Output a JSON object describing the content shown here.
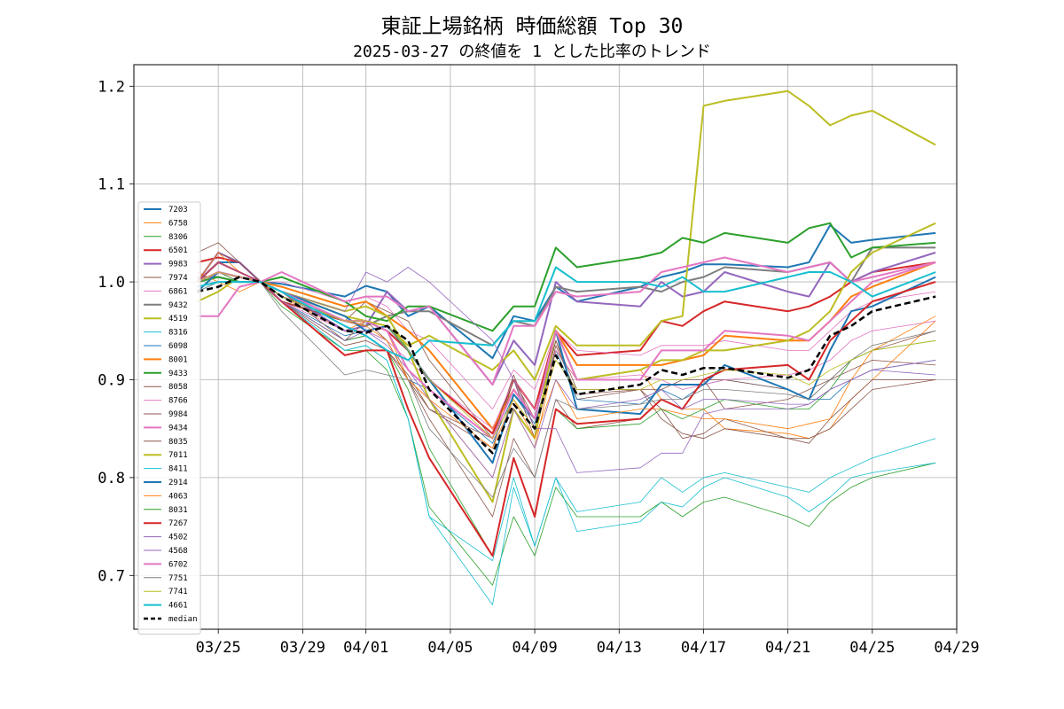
{
  "title": "東証上場銘柄 時価総額 Top 30",
  "subtitle": "2025-03-27 の終値を 1 とした比率のトレンド",
  "chart_data": {
    "type": "line",
    "grid": true,
    "legend_position": "left",
    "ylim": [
      0.645,
      1.222
    ],
    "xlim": [
      "2025-03-21",
      "2025-04-29"
    ],
    "xticks": [
      {
        "date": "2025-03-25",
        "label": "03/25"
      },
      {
        "date": "2025-03-29",
        "label": "03/29"
      },
      {
        "date": "2025-04-01",
        "label": "04/01"
      },
      {
        "date": "2025-04-05",
        "label": "04/05"
      },
      {
        "date": "2025-04-09",
        "label": "04/09"
      },
      {
        "date": "2025-04-13",
        "label": "04/13"
      },
      {
        "date": "2025-04-17",
        "label": "04/17"
      },
      {
        "date": "2025-04-21",
        "label": "04/21"
      },
      {
        "date": "2025-04-25",
        "label": "04/25"
      },
      {
        "date": "2025-04-29",
        "label": "04/29"
      }
    ],
    "yticks": [
      {
        "value": 0.7,
        "label": "0.7"
      },
      {
        "value": 0.8,
        "label": "0.8"
      },
      {
        "value": 0.9,
        "label": "0.9"
      },
      {
        "value": 1.0,
        "label": "1.0"
      },
      {
        "value": 1.1,
        "label": "1.1"
      },
      {
        "value": 1.2,
        "label": "1.2"
      }
    ],
    "x": [
      "2025-03-24",
      "2025-03-25",
      "2025-03-26",
      "2025-03-27",
      "2025-03-28",
      "2025-03-31",
      "2025-04-01",
      "2025-04-02",
      "2025-04-03",
      "2025-04-04",
      "2025-04-07",
      "2025-04-08",
      "2025-04-09",
      "2025-04-10",
      "2025-04-11",
      "2025-04-14",
      "2025-04-15",
      "2025-04-16",
      "2025-04-17",
      "2025-04-18",
      "2025-04-21",
      "2025-04-22",
      "2025-04-23",
      "2025-04-24",
      "2025-04-25",
      "2025-04-28"
    ],
    "series": [
      {
        "name": "7203",
        "color": "#1f77b4",
        "width": 2,
        "values": [
          1.0,
          1.02,
          1.02,
          1.0,
          0.998,
          0.985,
          0.996,
          0.99,
          0.965,
          0.975,
          0.922,
          0.965,
          0.96,
          0.995,
          0.98,
          0.995,
          1.005,
          1.01,
          1.018,
          1.018,
          1.015,
          1.02,
          1.058,
          1.04,
          1.043,
          1.05
        ]
      },
      {
        "name": "6758",
        "color": "#ff7f0e",
        "width": 0.8,
        "values": [
          1.01,
          1.0,
          0.99,
          1.0,
          0.985,
          0.95,
          0.96,
          0.95,
          0.9,
          0.88,
          0.8,
          0.87,
          0.83,
          0.93,
          0.9,
          0.91,
          0.88,
          0.87,
          0.87,
          0.85,
          0.845,
          0.84,
          0.85,
          0.88,
          0.9,
          0.96
        ]
      },
      {
        "name": "8306",
        "color": "#2ca02c",
        "width": 0.8,
        "values": [
          0.99,
          1.01,
          1.005,
          1.0,
          0.975,
          0.93,
          0.93,
          0.91,
          0.86,
          0.77,
          0.69,
          0.76,
          0.72,
          0.79,
          0.76,
          0.76,
          0.775,
          0.76,
          0.775,
          0.78,
          0.76,
          0.75,
          0.775,
          0.79,
          0.8,
          0.815
        ]
      },
      {
        "name": "6501",
        "color": "#d62728",
        "width": 2,
        "values": [
          1.02,
          1.025,
          1.02,
          1.0,
          0.98,
          0.96,
          0.96,
          0.95,
          0.93,
          0.9,
          0.845,
          0.9,
          0.87,
          0.95,
          0.925,
          0.93,
          0.96,
          0.955,
          0.97,
          0.98,
          0.97,
          0.975,
          0.985,
          1.0,
          1.01,
          1.02
        ]
      },
      {
        "name": "9983",
        "color": "#9467bd",
        "width": 2,
        "values": [
          1.0,
          1.03,
          1.02,
          1.0,
          0.99,
          0.95,
          0.955,
          0.99,
          0.97,
          0.975,
          0.895,
          0.94,
          0.915,
          1.0,
          0.98,
          0.975,
          1.0,
          0.985,
          0.99,
          1.01,
          0.99,
          0.985,
          1.02,
          1.0,
          1.01,
          1.03
        ]
      },
      {
        "name": "7974",
        "color": "#8c564b",
        "width": 0.8,
        "values": [
          1.03,
          1.04,
          1.02,
          1.0,
          0.98,
          0.96,
          0.98,
          0.97,
          0.96,
          0.92,
          0.84,
          0.9,
          0.86,
          0.94,
          0.88,
          0.89,
          0.87,
          0.84,
          0.845,
          0.86,
          0.84,
          0.835,
          0.86,
          0.88,
          0.9,
          0.9
        ]
      },
      {
        "name": "6861",
        "color": "#e377c2",
        "width": 0.8,
        "values": [
          1.0,
          1.01,
          1.0,
          1.0,
          1.0,
          0.98,
          0.985,
          0.975,
          0.95,
          0.94,
          0.87,
          0.91,
          0.89,
          0.95,
          0.93,
          0.925,
          0.935,
          0.935,
          0.935,
          0.94,
          0.93,
          0.93,
          0.95,
          0.97,
          0.98,
          0.99
        ]
      },
      {
        "name": "9432",
        "color": "#7f7f7f",
        "width": 2,
        "values": [
          1.005,
          1.005,
          1.0,
          1.0,
          0.985,
          0.96,
          0.955,
          0.965,
          0.97,
          0.97,
          0.935,
          0.96,
          0.955,
          0.995,
          0.99,
          0.995,
          0.99,
          1.0,
          1.005,
          1.015,
          1.01,
          1.015,
          1.02,
          1.0,
          1.035,
          1.035
        ]
      },
      {
        "name": "4519",
        "color": "#bcbd22",
        "width": 2,
        "values": [
          0.98,
          0.99,
          1.005,
          1.0,
          0.99,
          0.965,
          0.96,
          0.955,
          0.935,
          0.945,
          0.91,
          0.93,
          0.9,
          0.955,
          0.935,
          0.935,
          0.96,
          0.965,
          1.18,
          1.185,
          1.195,
          1.18,
          1.16,
          1.17,
          1.175,
          1.14
        ]
      },
      {
        "name": "8316",
        "color": "#17becf",
        "width": 0.8,
        "values": [
          0.99,
          1.0,
          1.0,
          1.0,
          0.98,
          0.93,
          0.935,
          0.92,
          0.86,
          0.76,
          0.67,
          0.79,
          0.73,
          0.8,
          0.765,
          0.775,
          0.8,
          0.785,
          0.8,
          0.805,
          0.79,
          0.785,
          0.8,
          0.81,
          0.82,
          0.84
        ]
      },
      {
        "name": "6098",
        "color": "#1f77b4",
        "width": 0.8,
        "values": [
          1.0,
          1.02,
          1.01,
          1.0,
          0.98,
          0.945,
          0.95,
          0.94,
          0.9,
          0.89,
          0.835,
          0.885,
          0.855,
          0.93,
          0.88,
          0.875,
          0.89,
          0.88,
          0.895,
          0.9,
          0.89,
          0.88,
          0.88,
          0.9,
          0.91,
          0.92
        ]
      },
      {
        "name": "8001",
        "color": "#ff7f0e",
        "width": 2,
        "values": [
          1.0,
          1.01,
          1.005,
          1.0,
          0.995,
          0.975,
          0.98,
          0.965,
          0.95,
          0.93,
          0.85,
          0.89,
          0.86,
          0.95,
          0.915,
          0.915,
          0.915,
          0.92,
          0.925,
          0.945,
          0.94,
          0.94,
          0.96,
          0.985,
          0.995,
          1.02
        ]
      },
      {
        "name": "9433",
        "color": "#2ca02c",
        "width": 2,
        "values": [
          1.0,
          1.005,
          1.0,
          1.0,
          1.005,
          0.98,
          0.965,
          0.96,
          0.975,
          0.975,
          0.95,
          0.975,
          0.975,
          1.035,
          1.015,
          1.025,
          1.03,
          1.045,
          1.04,
          1.05,
          1.04,
          1.055,
          1.06,
          1.025,
          1.035,
          1.04
        ]
      },
      {
        "name": "8058",
        "color": "#8c564b",
        "width": 0.8,
        "values": [
          1.0,
          1.02,
          1.01,
          1.0,
          0.98,
          0.94,
          0.945,
          0.93,
          0.905,
          0.87,
          0.84,
          0.905,
          0.85,
          0.94,
          0.89,
          0.89,
          0.89,
          0.9,
          0.9,
          0.9,
          0.89,
          0.88,
          0.9,
          0.91,
          0.92,
          0.915
        ]
      },
      {
        "name": "8766",
        "color": "#e377c2",
        "width": 0.8,
        "values": [
          1.0,
          1.01,
          1.0,
          1.0,
          0.98,
          0.95,
          0.95,
          0.94,
          0.92,
          0.9,
          0.85,
          0.9,
          0.87,
          0.93,
          0.9,
          0.905,
          0.9,
          0.89,
          0.895,
          0.9,
          0.905,
          0.91,
          0.92,
          0.94,
          0.95,
          0.96
        ]
      },
      {
        "name": "9984",
        "color": "#8c564b",
        "width": 0.8,
        "values": [
          1.0,
          1.03,
          1.02,
          1.0,
          0.99,
          0.94,
          0.96,
          0.94,
          0.9,
          0.87,
          0.83,
          0.9,
          0.84,
          0.935,
          0.885,
          0.89,
          0.86,
          0.845,
          0.84,
          0.85,
          0.84,
          0.84,
          0.85,
          0.87,
          0.89,
          0.9
        ]
      },
      {
        "name": "9434",
        "color": "#e377c2",
        "width": 2,
        "values": [
          0.965,
          0.965,
          0.995,
          1.0,
          1.01,
          0.98,
          0.985,
          0.985,
          0.97,
          0.975,
          0.895,
          0.955,
          0.955,
          0.99,
          0.985,
          0.99,
          1.01,
          1.015,
          1.02,
          1.025,
          1.01,
          1.015,
          1.02,
          1.0,
          1.005,
          1.02
        ]
      },
      {
        "name": "8035",
        "color": "#8c564b",
        "width": 0.8,
        "values": [
          1.0,
          1.02,
          1.01,
          1.0,
          0.98,
          0.935,
          0.94,
          0.93,
          0.9,
          0.86,
          0.76,
          0.84,
          0.8,
          0.88,
          0.85,
          0.86,
          0.88,
          0.87,
          0.9,
          0.87,
          0.88,
          0.89,
          0.9,
          0.92,
          0.93,
          0.95
        ]
      },
      {
        "name": "7011",
        "color": "#bcbd22",
        "width": 2,
        "values": [
          0.99,
          1.01,
          1.005,
          1.0,
          0.99,
          0.97,
          0.975,
          0.965,
          0.93,
          0.88,
          0.775,
          0.87,
          0.84,
          0.95,
          0.9,
          0.91,
          0.92,
          0.92,
          0.93,
          0.93,
          0.94,
          0.95,
          0.97,
          1.01,
          1.03,
          1.06
        ]
      },
      {
        "name": "8411",
        "color": "#17becf",
        "width": 0.8,
        "values": [
          0.99,
          1.0,
          1.0,
          1.0,
          0.98,
          0.93,
          0.935,
          0.92,
          0.86,
          0.76,
          0.715,
          0.8,
          0.73,
          0.8,
          0.745,
          0.755,
          0.775,
          0.77,
          0.79,
          0.8,
          0.78,
          0.765,
          0.78,
          0.8,
          0.805,
          0.815
        ]
      },
      {
        "name": "2914",
        "color": "#1f77b4",
        "width": 2,
        "values": [
          0.99,
          1.01,
          1.005,
          1.0,
          0.99,
          0.965,
          0.95,
          0.955,
          0.93,
          0.9,
          0.815,
          0.885,
          0.86,
          0.95,
          0.87,
          0.865,
          0.895,
          0.895,
          0.895,
          0.915,
          0.89,
          0.88,
          0.93,
          0.97,
          0.975,
          1.005
        ]
      },
      {
        "name": "4063",
        "color": "#ff7f0e",
        "width": 0.8,
        "values": [
          1.0,
          1.03,
          1.01,
          1.0,
          0.99,
          0.96,
          0.955,
          0.94,
          0.9,
          0.88,
          0.83,
          0.88,
          0.84,
          0.9,
          0.86,
          0.87,
          0.87,
          0.865,
          0.86,
          0.86,
          0.85,
          0.855,
          0.86,
          0.9,
          0.93,
          0.965
        ]
      },
      {
        "name": "8031",
        "color": "#2ca02c",
        "width": 0.8,
        "values": [
          1.0,
          1.01,
          1.0,
          1.0,
          0.98,
          0.94,
          0.945,
          0.93,
          0.89,
          0.83,
          0.72,
          0.82,
          0.76,
          0.87,
          0.85,
          0.855,
          0.87,
          0.86,
          0.87,
          0.88,
          0.87,
          0.87,
          0.89,
          0.92,
          0.93,
          0.94
        ]
      },
      {
        "name": "7267",
        "color": "#d62728",
        "width": 2,
        "values": [
          1.0,
          1.02,
          1.01,
          1.0,
          0.98,
          0.925,
          0.93,
          0.93,
          0.87,
          0.82,
          0.72,
          0.82,
          0.76,
          0.87,
          0.855,
          0.86,
          0.88,
          0.87,
          0.9,
          0.91,
          0.915,
          0.9,
          0.94,
          0.96,
          0.98,
          1.0
        ]
      },
      {
        "name": "4502",
        "color": "#9467bd",
        "width": 0.8,
        "values": [
          1.0,
          1.01,
          1.005,
          1.0,
          0.99,
          0.97,
          1.01,
          1.0,
          1.015,
          1.0,
          0.94,
          0.9,
          0.85,
          0.85,
          0.805,
          0.81,
          0.825,
          0.825,
          0.865,
          0.87,
          0.87,
          0.875,
          0.89,
          0.9,
          0.91,
          0.905
        ]
      },
      {
        "name": "4568",
        "color": "#9467bd",
        "width": 0.8,
        "values": [
          1.0,
          1.02,
          1.01,
          1.0,
          0.98,
          0.94,
          0.95,
          0.935,
          0.91,
          0.88,
          0.8,
          0.87,
          0.83,
          0.9,
          0.87,
          0.88,
          0.89,
          0.87,
          0.88,
          0.88,
          0.875,
          0.875,
          0.89,
          0.9,
          0.91,
          0.92
        ]
      },
      {
        "name": "6702",
        "color": "#e377c2",
        "width": 2,
        "values": [
          1.0,
          1.01,
          1.005,
          1.0,
          0.99,
          0.96,
          0.96,
          0.95,
          0.91,
          0.89,
          0.84,
          0.89,
          0.86,
          0.95,
          0.9,
          0.9,
          0.93,
          0.93,
          0.93,
          0.95,
          0.945,
          0.94,
          0.96,
          0.98,
          1.0,
          1.02
        ]
      },
      {
        "name": "7751",
        "color": "#7f7f7f",
        "width": 0.8,
        "values": [
          0.99,
          1.0,
          1.0,
          1.0,
          0.97,
          0.905,
          0.91,
          0.905,
          0.9,
          0.85,
          0.78,
          0.83,
          0.8,
          0.88,
          0.87,
          0.875,
          0.88,
          0.88,
          0.89,
          0.89,
          0.885,
          0.88,
          0.9,
          0.92,
          0.935,
          0.95
        ]
      },
      {
        "name": "7741",
        "color": "#bcbd22",
        "width": 0.8,
        "values": [
          1.0,
          1.01,
          1.005,
          1.0,
          0.985,
          0.96,
          0.96,
          0.955,
          0.93,
          0.9,
          0.84,
          0.88,
          0.85,
          0.92,
          0.89,
          0.89,
          0.9,
          0.9,
          0.905,
          0.91,
          0.905,
          0.895,
          0.91,
          0.92,
          0.93,
          0.94
        ]
      },
      {
        "name": "4661",
        "color": "#17becf",
        "width": 2,
        "values": [
          0.995,
          1.0,
          1.0,
          1.0,
          0.99,
          0.955,
          0.945,
          0.93,
          0.92,
          0.94,
          0.935,
          0.96,
          0.96,
          1.015,
          1.0,
          1.0,
          0.995,
          1.005,
          0.99,
          0.99,
          1.005,
          1.01,
          1.01,
          1.0,
          0.985,
          1.01
        ]
      },
      {
        "name": "median",
        "color": "#000000",
        "width": 2.5,
        "dashed": true,
        "values": [
          0.99,
          0.995,
          1.005,
          1.0,
          0.985,
          0.95,
          0.948,
          0.955,
          0.94,
          0.89,
          0.825,
          0.875,
          0.85,
          0.925,
          0.885,
          0.895,
          0.91,
          0.905,
          0.912,
          0.912,
          0.902,
          0.91,
          0.945,
          0.955,
          0.97,
          0.985
        ]
      }
    ]
  }
}
